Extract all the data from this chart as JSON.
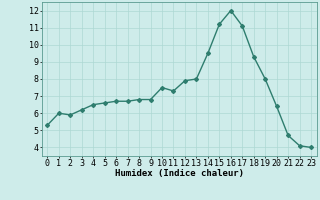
{
  "x": [
    0,
    1,
    2,
    3,
    4,
    5,
    6,
    7,
    8,
    9,
    10,
    11,
    12,
    13,
    14,
    15,
    16,
    17,
    18,
    19,
    20,
    21,
    22,
    23
  ],
  "y": [
    5.3,
    6.0,
    5.9,
    6.2,
    6.5,
    6.6,
    6.7,
    6.7,
    6.8,
    6.8,
    7.5,
    7.3,
    7.9,
    8.0,
    9.5,
    11.2,
    12.0,
    11.1,
    9.3,
    8.0,
    6.4,
    4.7,
    4.1,
    4.0
  ],
  "line_color": "#2e7d6e",
  "marker": "D",
  "markersize": 2.0,
  "linewidth": 1.0,
  "bg_color": "#ceecea",
  "grid_color": "#aed8d4",
  "xlabel": "Humidex (Indice chaleur)",
  "xlabel_fontsize": 6.5,
  "tick_fontsize": 6,
  "xlim": [
    -0.5,
    23.5
  ],
  "ylim": [
    3.5,
    12.5
  ],
  "yticks": [
    4,
    5,
    6,
    7,
    8,
    9,
    10,
    11,
    12
  ],
  "xticks": [
    0,
    1,
    2,
    3,
    4,
    5,
    6,
    7,
    8,
    9,
    10,
    11,
    12,
    13,
    14,
    15,
    16,
    17,
    18,
    19,
    20,
    21,
    22,
    23
  ]
}
